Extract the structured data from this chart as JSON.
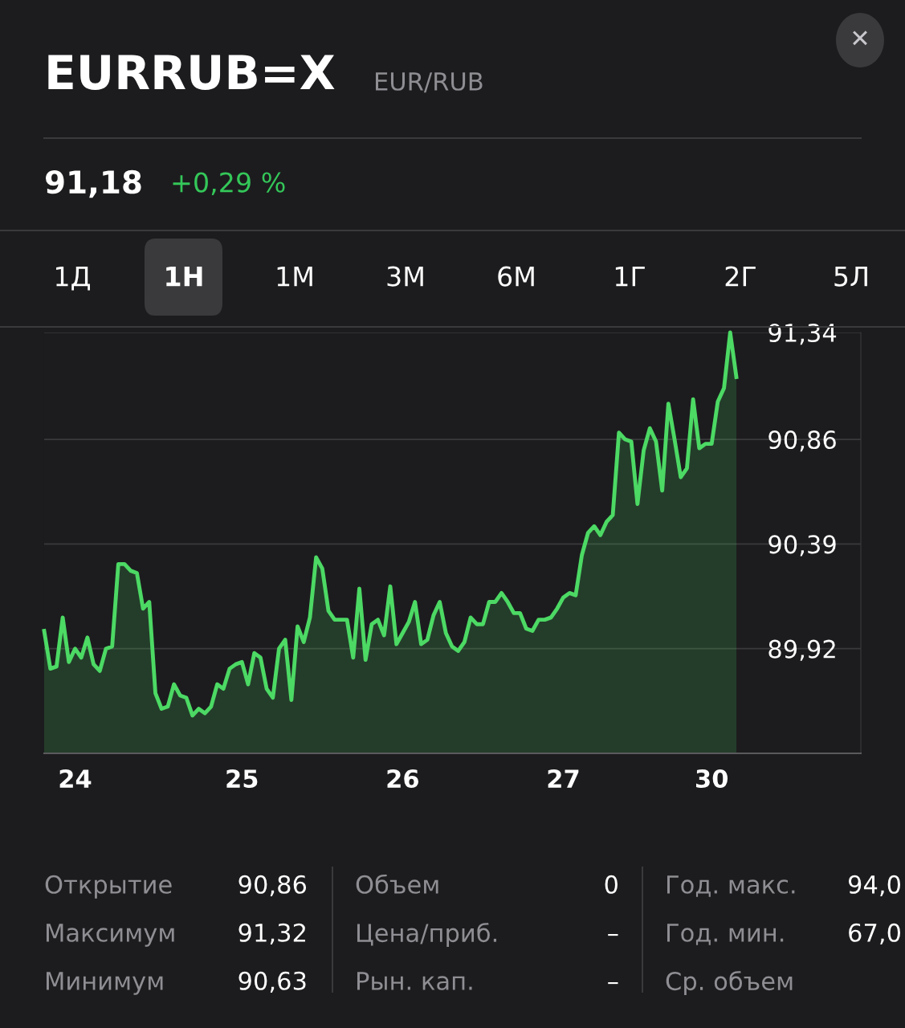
{
  "chart_data": {
    "type": "area",
    "title": "EURRUB=X",
    "subtitle": "EUR/RUB",
    "categories": [
      null,
      null,
      null,
      null,
      null,
      "24",
      null,
      null,
      null,
      null,
      null,
      null,
      null,
      null,
      null,
      null,
      null,
      null,
      null,
      null,
      null,
      null,
      null,
      null,
      null,
      null,
      null,
      null,
      null,
      null,
      null,
      null,
      "25",
      null,
      null,
      null,
      null,
      null,
      null,
      null,
      null,
      null,
      null,
      null,
      null,
      null,
      null,
      null,
      null,
      null,
      null,
      null,
      null,
      null,
      null,
      null,
      null,
      null,
      "26",
      null,
      null,
      null,
      null,
      null,
      null,
      null,
      null,
      null,
      null,
      null,
      null,
      null,
      null,
      null,
      null,
      null,
      null,
      null,
      null,
      null,
      null,
      null,
      null,
      null,
      "27",
      null,
      null,
      null,
      null,
      null,
      null,
      null,
      null,
      null,
      null,
      null,
      null,
      null,
      null,
      null,
      null,
      null,
      null,
      null,
      null,
      null,
      null,
      null,
      "30",
      null,
      null,
      null,
      null
    ],
    "series": [
      {
        "color": "#4cd964",
        "values": [
          90.0,
          89.83,
          89.84,
          90.06,
          89.86,
          89.92,
          89.88,
          89.97,
          89.85,
          89.82,
          89.92,
          89.93,
          90.3,
          90.3,
          90.27,
          90.26,
          90.1,
          90.13,
          89.72,
          89.65,
          89.66,
          89.76,
          89.71,
          89.7,
          89.62,
          89.65,
          89.63,
          89.66,
          89.76,
          89.74,
          89.83,
          89.85,
          89.86,
          89.76,
          89.9,
          89.88,
          89.74,
          89.7,
          89.92,
          89.96,
          89.69,
          90.02,
          89.95,
          90.06,
          90.33,
          90.28,
          90.09,
          90.05,
          90.05,
          90.05,
          89.88,
          90.19,
          89.87,
          90.03,
          90.05,
          89.98,
          90.2,
          89.94,
          89.99,
          90.04,
          90.13,
          89.94,
          89.96,
          90.07,
          90.13,
          89.99,
          89.93,
          89.91,
          89.95,
          90.06,
          90.03,
          90.03,
          90.13,
          90.13,
          90.17,
          90.13,
          90.08,
          90.08,
          90.01,
          90.0,
          90.05,
          90.05,
          90.06,
          90.1,
          90.15,
          90.17,
          90.16,
          90.34,
          90.44,
          90.47,
          90.43,
          90.49,
          90.52,
          90.89,
          90.86,
          90.85,
          90.57,
          90.81,
          90.91,
          90.85,
          90.63,
          91.02,
          90.86,
          90.69,
          90.73,
          91.04,
          90.82,
          90.84,
          90.84,
          91.03,
          91.09,
          91.34,
          91.14
        ]
      }
    ],
    "ylim": [
      89.45,
      91.34
    ],
    "yticks": [
      {
        "value": 91.34,
        "label": "91,34"
      },
      {
        "value": 90.86,
        "label": "90,86"
      },
      {
        "value": 90.39,
        "label": "90,39"
      },
      {
        "value": 89.92,
        "label": "89,92"
      }
    ],
    "grid": "y",
    "annotations": [
      "91,18",
      "+0,29 %",
      "1Д",
      "1Н",
      "1М",
      "3М",
      "6М",
      "1Г",
      "2Г",
      "5Л",
      "Открытие",
      "90,86",
      "Максимум",
      "91,32",
      "Минимум",
      "90,63",
      "Объем",
      "0",
      "Цена/приб.",
      "–",
      "Рын. кап.",
      "–",
      "Год. макс.",
      "94,0",
      "Год. мин.",
      "67,0",
      "Ср. объем",
      "✕"
    ]
  }
}
